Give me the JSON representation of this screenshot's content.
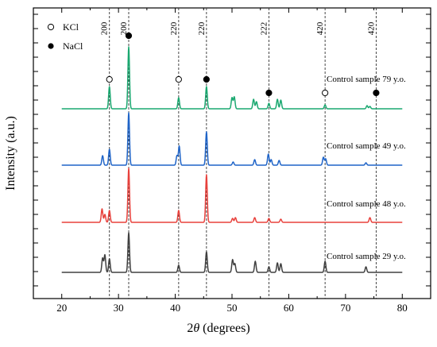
{
  "chart_data": {
    "type": "line",
    "xlabel_prefix": "2",
    "xlabel_theta": "θ",
    "xlabel_suffix": " (degrees)",
    "ylabel": "Intensity (a.u.)",
    "xlim": [
      15,
      85
    ],
    "xticks": [
      "20",
      "30",
      "40",
      "50",
      "60",
      "70",
      "80"
    ],
    "legend": [
      {
        "marker": "open-circle",
        "label": "KCl"
      },
      {
        "marker": "filled-circle",
        "label": "NaCl"
      }
    ],
    "reference_lines": [
      {
        "x": 28.4,
        "label": "200",
        "phase": "KCl"
      },
      {
        "x": 31.8,
        "label": "200",
        "phase": "NaCl"
      },
      {
        "x": 40.6,
        "label": "220",
        "phase": "KCl"
      },
      {
        "x": 45.5,
        "label": "220",
        "phase": "NaCl"
      },
      {
        "x": 56.5,
        "label": "222",
        "phase": "NaCl"
      },
      {
        "x": 66.4,
        "label": "420",
        "phase": "KCl"
      },
      {
        "x": 75.4,
        "label": "420",
        "phase": "NaCl"
      }
    ],
    "markers": [
      {
        "x": 28.4,
        "type": "open-circle"
      },
      {
        "x": 31.8,
        "type": "filled-circle"
      },
      {
        "x": 40.6,
        "type": "open-circle"
      },
      {
        "x": 45.5,
        "type": "filled-circle"
      },
      {
        "x": 56.5,
        "type": "filled-circle"
      },
      {
        "x": 66.4,
        "type": "open-circle"
      },
      {
        "x": 75.4,
        "type": "filled-circle"
      }
    ],
    "series": [
      {
        "name": "Control sample 29 y.o.",
        "color": "#404040",
        "peaks": [
          [
            27.2,
            0.18
          ],
          [
            27.6,
            0.22
          ],
          [
            28.4,
            0.17
          ],
          [
            31.8,
            0.5
          ],
          [
            40.6,
            0.09
          ],
          [
            45.5,
            0.26
          ],
          [
            50.1,
            0.16
          ],
          [
            50.5,
            0.11
          ],
          [
            54.1,
            0.14
          ],
          [
            56.5,
            0.07
          ],
          [
            58.0,
            0.12
          ],
          [
            58.6,
            0.11
          ],
          [
            66.4,
            0.14
          ],
          [
            73.6,
            0.07
          ]
        ]
      },
      {
        "name": "Control sample 48 y.o.",
        "color": "#e8413c",
        "peaks": [
          [
            27.1,
            0.17
          ],
          [
            27.6,
            0.1
          ],
          [
            28.4,
            0.15
          ],
          [
            31.8,
            0.68
          ],
          [
            40.6,
            0.15
          ],
          [
            45.5,
            0.6
          ],
          [
            50.1,
            0.05
          ],
          [
            50.6,
            0.06
          ],
          [
            54.0,
            0.06
          ],
          [
            56.5,
            0.05
          ],
          [
            58.6,
            0.04
          ],
          [
            74.3,
            0.06
          ]
        ]
      },
      {
        "name": "Control sample 49 y.o.",
        "color": "#1f64c8",
        "peaks": [
          [
            27.2,
            0.12
          ],
          [
            28.4,
            0.2
          ],
          [
            31.8,
            0.66
          ],
          [
            40.3,
            0.12
          ],
          [
            40.7,
            0.24
          ],
          [
            45.5,
            0.42
          ],
          [
            50.2,
            0.04
          ],
          [
            54.0,
            0.07
          ],
          [
            56.4,
            0.14
          ],
          [
            56.9,
            0.07
          ],
          [
            58.3,
            0.06
          ],
          [
            66.1,
            0.1
          ],
          [
            66.5,
            0.08
          ],
          [
            73.6,
            0.03
          ]
        ]
      },
      {
        "name": "Control sample 79 y.o.",
        "color": "#1aa870",
        "peaks": [
          [
            28.4,
            0.28
          ],
          [
            31.8,
            0.78
          ],
          [
            40.6,
            0.14
          ],
          [
            45.5,
            0.28
          ],
          [
            50.0,
            0.14
          ],
          [
            50.4,
            0.15
          ],
          [
            53.8,
            0.12
          ],
          [
            54.3,
            0.09
          ],
          [
            56.5,
            0.07
          ],
          [
            58.0,
            0.12
          ],
          [
            58.6,
            0.11
          ],
          [
            66.4,
            0.05
          ],
          [
            73.8,
            0.04
          ],
          [
            74.3,
            0.03
          ]
        ]
      }
    ]
  }
}
